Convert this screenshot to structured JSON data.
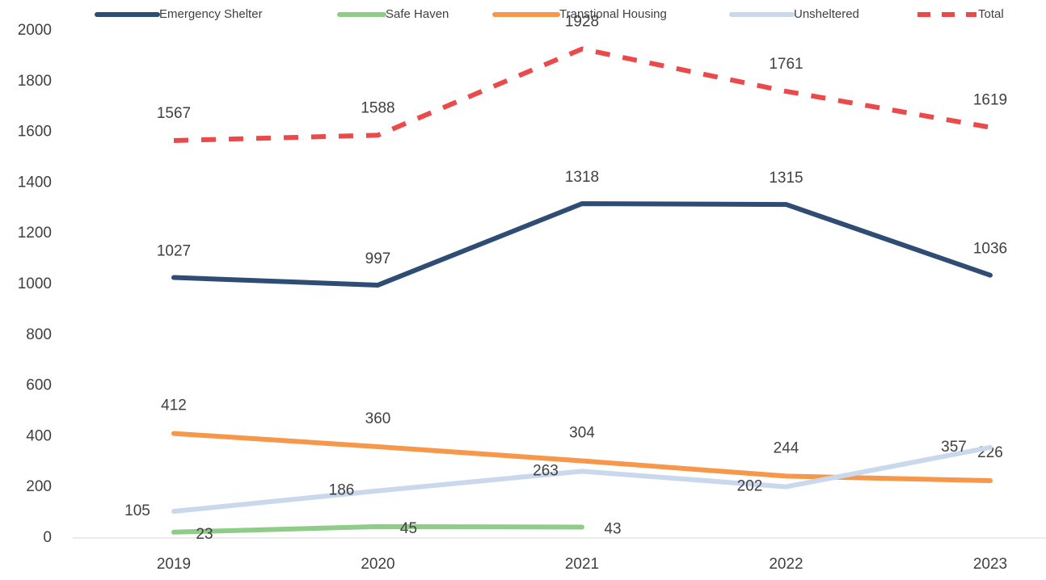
{
  "chart_data": {
    "type": "line",
    "categories": [
      "2019",
      "2020",
      "2021",
      "2022",
      "2023"
    ],
    "series": [
      {
        "name": "Emergency Shelter",
        "color": "#2f4d74",
        "values": [
          1027,
          997,
          1318,
          1315,
          1036
        ]
      },
      {
        "name": "Safe Haven",
        "color": "#8fcc88",
        "values": [
          23,
          45,
          43,
          null,
          null
        ]
      },
      {
        "name": "Transtional Housing",
        "color": "#f6974a",
        "values": [
          412,
          360,
          304,
          244,
          226
        ]
      },
      {
        "name": "Unsheltered",
        "color": "#c9d8ec",
        "values": [
          105,
          186,
          263,
          202,
          357
        ]
      },
      {
        "name": "Total",
        "color": "#eb4a4a",
        "dashed": true,
        "values": [
          1567,
          1588,
          1928,
          1761,
          1619
        ]
      }
    ],
    "ylim": [
      0,
      2000
    ],
    "yticks": [
      0,
      200,
      400,
      600,
      800,
      1000,
      1200,
      1400,
      1600,
      1800,
      2000
    ],
    "grid": false,
    "legend": "top",
    "data_labels": true
  }
}
